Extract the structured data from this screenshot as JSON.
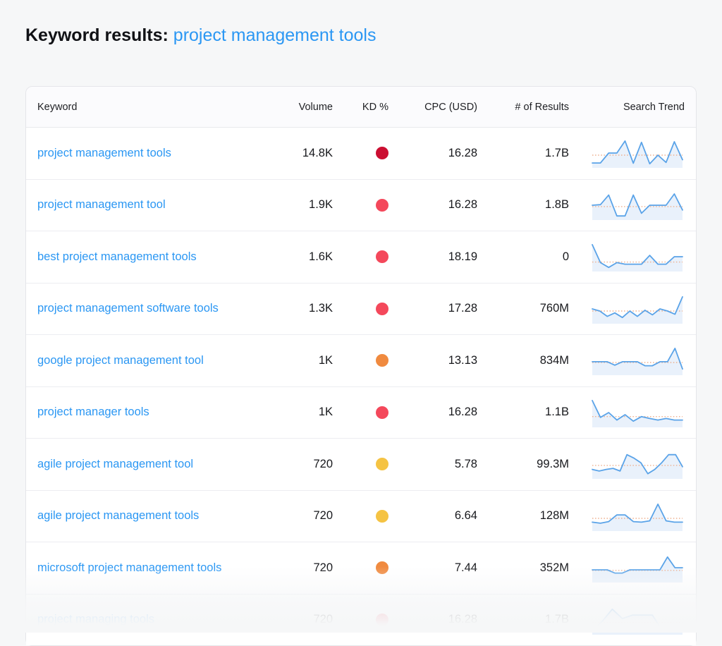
{
  "header": {
    "title_label": "Keyword results:",
    "title_query": "project management tools"
  },
  "table": {
    "columns": [
      "Keyword",
      "Volume",
      "KD %",
      "CPC (USD)",
      "# of Results",
      "Search Trend"
    ],
    "rows": [
      {
        "keyword": "project management tools",
        "volume": "14.8K",
        "kd_level": "very-hard",
        "kd_color": "#cb0e31",
        "cpc": "16.28",
        "results": "1.7B",
        "trend": {
          "baseline": 0.42,
          "points": [
            0.13,
            0.13,
            0.5,
            0.5,
            0.95,
            0.12,
            0.9,
            0.1,
            0.42,
            0.15,
            0.92,
            0.25
          ]
        }
      },
      {
        "keyword": "project management tool",
        "volume": "1.9K",
        "kd_level": "hard",
        "kd_color": "#f4485b",
        "cpc": "16.28",
        "results": "1.8B",
        "trend": {
          "baseline": 0.45,
          "points": [
            0.5,
            0.52,
            0.88,
            0.1,
            0.1,
            0.88,
            0.2,
            0.5,
            0.5,
            0.5,
            0.92,
            0.32
          ]
        }
      },
      {
        "keyword": "best project management tools",
        "volume": "1.6K",
        "kd_level": "hard",
        "kd_color": "#f4485b",
        "cpc": "18.19",
        "results": "0",
        "trend": {
          "baseline": 0.3,
          "points": [
            0.95,
            0.28,
            0.1,
            0.28,
            0.22,
            0.22,
            0.22,
            0.55,
            0.22,
            0.22,
            0.5,
            0.5
          ]
        }
      },
      {
        "keyword": "project management software tools",
        "volume": "1.3K",
        "kd_level": "hard",
        "kd_color": "#f4485b",
        "cpc": "17.28",
        "results": "760M",
        "trend": {
          "baseline": 0.42,
          "points": [
            0.5,
            0.42,
            0.22,
            0.35,
            0.18,
            0.42,
            0.22,
            0.45,
            0.28,
            0.5,
            0.42,
            0.3,
            0.95
          ]
        }
      },
      {
        "keyword": "google project management tool",
        "volume": "1K",
        "kd_level": "difficult",
        "kd_color": "#f08a3f",
        "cpc": "13.13",
        "results": "834M",
        "trend": {
          "baseline": 0.42,
          "points": [
            0.45,
            0.45,
            0.45,
            0.32,
            0.45,
            0.45,
            0.45,
            0.3,
            0.3,
            0.45,
            0.45,
            0.95,
            0.18
          ]
        }
      },
      {
        "keyword": "project manager tools",
        "volume": "1K",
        "kd_level": "hard",
        "kd_color": "#f4485b",
        "cpc": "16.28",
        "results": "1.1B",
        "trend": {
          "baseline": 0.35,
          "points": [
            0.95,
            0.32,
            0.5,
            0.22,
            0.42,
            0.18,
            0.35,
            0.28,
            0.22,
            0.28,
            0.22,
            0.22
          ]
        }
      },
      {
        "keyword": "agile project management tool",
        "volume": "720",
        "kd_level": "possible",
        "kd_color": "#f5c343",
        "cpc": "5.78",
        "results": "99.3M",
        "trend": {
          "baseline": 0.45,
          "points": [
            0.3,
            0.24,
            0.3,
            0.34,
            0.24,
            0.85,
            0.72,
            0.55,
            0.14,
            0.3,
            0.55,
            0.85,
            0.85,
            0.4
          ]
        }
      },
      {
        "keyword": "agile project management tools",
        "volume": "720",
        "kd_level": "possible",
        "kd_color": "#f5c343",
        "cpc": "6.64",
        "results": "128M",
        "trend": {
          "baseline": 0.42,
          "points": [
            0.28,
            0.24,
            0.3,
            0.55,
            0.55,
            0.3,
            0.28,
            0.33,
            0.95,
            0.33,
            0.28,
            0.28
          ]
        }
      },
      {
        "keyword": "microsoft project management tools",
        "volume": "720",
        "kd_level": "difficult",
        "kd_color": "#f08a3f",
        "cpc": "7.44",
        "results": "352M",
        "trend": {
          "baseline": 0.4,
          "points": [
            0.42,
            0.42,
            0.42,
            0.3,
            0.3,
            0.42,
            0.42,
            0.42,
            0.42,
            0.42,
            0.9,
            0.5,
            0.5
          ]
        }
      },
      {
        "keyword": "project managing tools",
        "volume": "720",
        "kd_level": "hard",
        "kd_color": "#f4485b",
        "cpc": "16.28",
        "results": "1.7B",
        "trend": {
          "baseline": 0.4,
          "points": [
            0.1,
            0.45,
            0.9,
            0.55,
            0.68,
            0.68,
            0.68,
            0.1,
            0.1,
            0.12
          ]
        }
      }
    ]
  },
  "colors": {
    "page_bg": "#f6f7f8",
    "link_blue": "#2b97f3",
    "trend_line": "#5aa3e8",
    "trend_fill": "#e9f1fb",
    "trend_baseline": "#edaf8e"
  },
  "icons": {
    "kd_dot": "difficulty-dot"
  }
}
